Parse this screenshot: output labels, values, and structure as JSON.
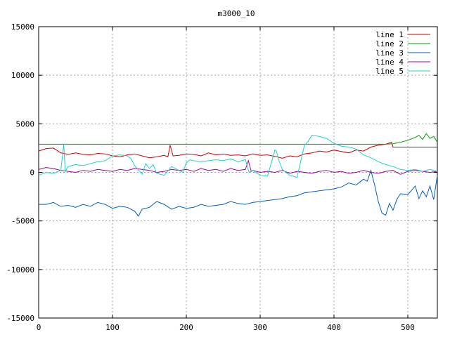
{
  "chart_data": {
    "type": "line",
    "title": "m3000_10",
    "xlabel": "",
    "ylabel": "",
    "xlim": [
      0,
      540
    ],
    "ylim": [
      -15000,
      15000
    ],
    "x_ticks": [
      0,
      100,
      200,
      300,
      400,
      500
    ],
    "y_ticks": [
      -15000,
      -10000,
      -5000,
      0,
      5000,
      10000,
      15000
    ],
    "grid": true,
    "legend_position": "top-right",
    "series": [
      {
        "name": "line 1",
        "color": "#cc0000",
        "x": [
          0,
          10,
          20,
          30,
          40,
          50,
          60,
          70,
          80,
          90,
          100,
          110,
          120,
          130,
          140,
          150,
          160,
          170,
          175,
          178,
          182,
          190,
          200,
          210,
          220,
          230,
          240,
          250,
          260,
          270,
          280,
          290,
          300,
          310,
          320,
          330,
          340,
          350,
          360,
          370,
          380,
          390,
          400,
          410,
          420,
          430,
          440,
          450,
          460,
          470,
          478,
          480,
          490,
          500,
          510,
          520,
          530,
          540
        ],
        "y": [
          2200,
          2450,
          2500,
          2000,
          1850,
          2000,
          1850,
          1800,
          1950,
          1900,
          1700,
          1600,
          1800,
          1900,
          1700,
          1500,
          1600,
          1750,
          1600,
          2800,
          1700,
          1750,
          1900,
          1850,
          1700,
          2000,
          1800,
          1900,
          1750,
          1800,
          1700,
          1900,
          1750,
          1800,
          1650,
          1450,
          1700,
          1600,
          1900,
          2000,
          2200,
          2100,
          2300,
          2150,
          2000,
          2300,
          2200,
          2600,
          2800,
          2900,
          3100,
          2600,
          2600,
          2600,
          2600,
          2600,
          2600,
          2600
        ]
      },
      {
        "name": "line 2",
        "color": "#00a000",
        "x": [
          0,
          50,
          100,
          150,
          200,
          250,
          300,
          350,
          400,
          450,
          470,
          480,
          490,
          500,
          510,
          515,
          520,
          525,
          530,
          535,
          540
        ],
        "y": [
          2900,
          2900,
          2900,
          2900,
          2900,
          2900,
          2900,
          2900,
          2900,
          2900,
          2900,
          2950,
          3100,
          3300,
          3600,
          3800,
          3400,
          4000,
          3500,
          3700,
          3100
        ]
      },
      {
        "name": "line 3",
        "color": "#0060c0",
        "x": [
          0,
          10,
          20,
          30,
          40,
          50,
          60,
          70,
          80,
          90,
          100,
          110,
          120,
          130,
          135,
          140,
          150,
          160,
          170,
          180,
          190,
          200,
          210,
          220,
          230,
          240,
          250,
          260,
          270,
          280,
          290,
          300,
          310,
          320,
          330,
          340,
          350,
          360,
          370,
          380,
          390,
          400,
          410,
          420,
          430,
          440,
          445,
          450,
          455,
          460,
          465,
          470,
          475,
          480,
          485,
          490,
          500,
          510,
          515,
          520,
          525,
          530,
          535,
          540
        ],
        "y": [
          -3300,
          -3300,
          -3100,
          -3500,
          -3400,
          -3600,
          -3300,
          -3500,
          -3100,
          -3300,
          -3700,
          -3500,
          -3600,
          -4000,
          -4500,
          -3800,
          -3600,
          -3000,
          -3300,
          -3800,
          -3500,
          -3700,
          -3600,
          -3300,
          -3500,
          -3400,
          -3300,
          -3000,
          -3200,
          -3300,
          -3100,
          -3000,
          -2900,
          -2800,
          -2700,
          -2500,
          -2400,
          -2100,
          -2000,
          -1900,
          -1800,
          -1700,
          -1500,
          -1100,
          -1300,
          -700,
          -900,
          200,
          -1300,
          -3000,
          -4200,
          -4400,
          -3200,
          -3900,
          -2800,
          -2200,
          -2300,
          -1400,
          -2700,
          -1900,
          -2500,
          -1400,
          -2800,
          -300
        ]
      },
      {
        "name": "line 4",
        "color": "#a000a0",
        "x": [
          0,
          10,
          20,
          30,
          40,
          50,
          60,
          70,
          80,
          90,
          100,
          110,
          120,
          130,
          140,
          150,
          160,
          170,
          180,
          190,
          200,
          210,
          220,
          230,
          240,
          250,
          260,
          270,
          280,
          284,
          288,
          290,
          300,
          310,
          320,
          330,
          340,
          350,
          360,
          370,
          380,
          390,
          400,
          410,
          420,
          430,
          440,
          450,
          460,
          470,
          480,
          490,
          500,
          510,
          520,
          530,
          540
        ],
        "y": [
          300,
          500,
          400,
          200,
          100,
          0,
          200,
          100,
          300,
          200,
          100,
          300,
          200,
          400,
          300,
          200,
          0,
          100,
          300,
          200,
          300,
          100,
          400,
          200,
          300,
          100,
          400,
          200,
          300,
          1200,
          100,
          200,
          0,
          100,
          0,
          200,
          -100,
          100,
          0,
          -100,
          100,
          200,
          0,
          100,
          -100,
          0,
          200,
          0,
          -100,
          100,
          200,
          -200,
          100,
          200,
          100,
          0,
          100
        ]
      },
      {
        "name": "line 5",
        "color": "#20d0d0",
        "x": [
          0,
          10,
          20,
          30,
          34,
          36,
          40,
          50,
          60,
          70,
          80,
          90,
          100,
          110,
          120,
          125,
          130,
          140,
          145,
          150,
          155,
          160,
          170,
          180,
          190,
          195,
          200,
          205,
          210,
          220,
          230,
          240,
          250,
          260,
          270,
          280,
          285,
          290,
          300,
          310,
          320,
          322,
          325,
          330,
          340,
          350,
          360,
          365,
          370,
          380,
          390,
          400,
          410,
          420,
          430,
          440,
          450,
          460,
          470,
          480,
          490,
          500,
          510,
          520,
          530,
          540
        ],
        "y": [
          -300,
          0,
          -100,
          200,
          2900,
          100,
          600,
          800,
          700,
          900,
          1100,
          1200,
          1700,
          1800,
          1700,
          1400,
          700,
          -200,
          900,
          400,
          800,
          -100,
          -300,
          600,
          200,
          0,
          1000,
          1300,
          1200,
          1100,
          1200,
          1300,
          1200,
          1400,
          1100,
          1300,
          0,
          200,
          -300,
          -400,
          2300,
          2200,
          1300,
          300,
          -300,
          -500,
          2800,
          3200,
          3800,
          3700,
          3500,
          3000,
          2700,
          2600,
          2400,
          1800,
          1500,
          1100,
          800,
          600,
          300,
          200,
          300,
          100,
          300,
          100
        ]
      }
    ]
  }
}
